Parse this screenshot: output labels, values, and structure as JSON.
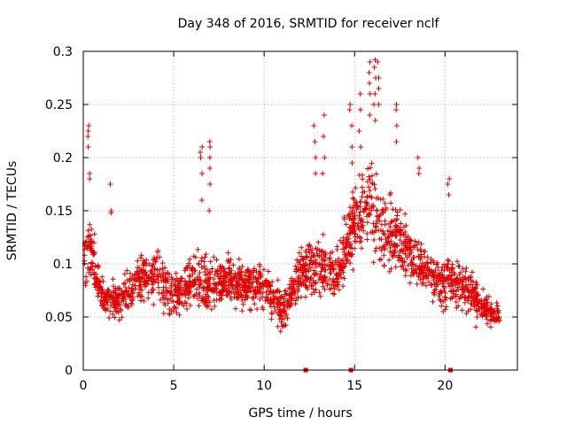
{
  "chart_data": {
    "type": "scatter",
    "title": "Day 348 of 2016, SRMTID for receiver nclf",
    "xlabel": "GPS time / hours",
    "ylabel": "SRMTID / TECUs",
    "xlim": [
      0,
      24
    ],
    "ylim": [
      0,
      0.3
    ],
    "x_ticks": [
      0,
      5,
      10,
      15,
      20
    ],
    "x_tick_labels": [
      "0",
      "5",
      "10",
      "15",
      "20"
    ],
    "y_ticks": [
      0,
      0.05,
      0.1,
      0.15,
      0.2,
      0.25,
      0.3
    ],
    "y_tick_labels": [
      "0",
      "0.05",
      "0.1",
      "0.15",
      "0.2",
      "0.25",
      "0.3"
    ],
    "grid": true,
    "marker": "+",
    "series": [
      {
        "name": "SRMTID",
        "color": "#e00000",
        "profile_hours": [
          0,
          0.3,
          1,
          2,
          3,
          4,
          5,
          6,
          7,
          8,
          9,
          10,
          11,
          12,
          13,
          14,
          15,
          15.8,
          16.5,
          17.5,
          18.5,
          19.5,
          20.5,
          21.5,
          22,
          23
        ],
        "profile_median": [
          0.1,
          0.12,
          0.07,
          0.065,
          0.085,
          0.09,
          0.07,
          0.085,
          0.08,
          0.085,
          0.08,
          0.08,
          0.055,
          0.09,
          0.1,
          0.09,
          0.14,
          0.16,
          0.13,
          0.125,
          0.1,
          0.085,
          0.08,
          0.075,
          0.06,
          0.05
        ],
        "profile_spread": [
          0.04,
          0.05,
          0.035,
          0.03,
          0.035,
          0.04,
          0.03,
          0.04,
          0.04,
          0.035,
          0.035,
          0.035,
          0.03,
          0.04,
          0.05,
          0.04,
          0.06,
          0.07,
          0.06,
          0.05,
          0.04,
          0.035,
          0.035,
          0.035,
          0.025,
          0.02
        ],
        "hour_range": [
          0,
          23
        ],
        "point_count": 2100,
        "spikes": [
          {
            "x": 0.3,
            "y": [
              0.22,
              0.23,
              0.225,
              0.21,
              0.185,
              0.18
            ]
          },
          {
            "x": 1.5,
            "y": [
              0.175,
              0.15,
              0.148
            ]
          },
          {
            "x": 6.5,
            "y": [
              0.21,
              0.205,
              0.2,
              0.185,
              0.16
            ]
          },
          {
            "x": 7.0,
            "y": [
              0.215,
              0.21,
              0.2,
              0.19,
              0.175,
              0.15
            ]
          },
          {
            "x": 12.8,
            "y": [
              0.23,
              0.215,
              0.2,
              0.185
            ]
          },
          {
            "x": 13.3,
            "y": [
              0.24,
              0.22,
              0.2,
              0.185
            ]
          },
          {
            "x": 14.8,
            "y": [
              0.25,
              0.245,
              0.23,
              0.21,
              0.195
            ]
          },
          {
            "x": 15.3,
            "y": [
              0.26,
              0.245,
              0.225,
              0.21
            ]
          },
          {
            "x": 15.8,
            "y": [
              0.29,
              0.28,
              0.27,
              0.26,
              0.24
            ]
          },
          {
            "x": 16.1,
            "y": [
              0.292,
              0.285,
              0.275,
              0.26,
              0.25,
              0.235
            ]
          },
          {
            "x": 16.3,
            "y": [
              0.29,
              0.275,
              0.265,
              0.25
            ]
          },
          {
            "x": 17.3,
            "y": [
              0.25,
              0.245,
              0.23,
              0.215
            ]
          },
          {
            "x": 18.5,
            "y": [
              0.2,
              0.19,
              0.185
            ]
          },
          {
            "x": 20.2,
            "y": [
              0.18,
              0.175,
              0.165
            ]
          }
        ],
        "zero_markers": [
          12.3,
          14.8,
          20.3
        ]
      }
    ]
  }
}
